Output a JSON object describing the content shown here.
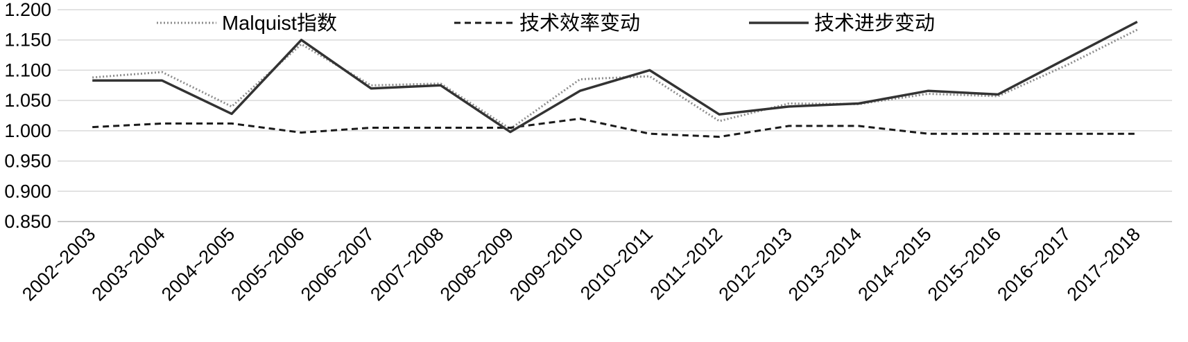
{
  "chart_data": {
    "type": "line",
    "categories": [
      "2002~2003",
      "2003~2004",
      "2004~2005",
      "2005~2006",
      "2006~2007",
      "2007~2008",
      "2008~2009",
      "2009~2010",
      "2010~2011",
      "2011~2012",
      "2012~2013",
      "2013~2014",
      "2014~2015",
      "2015~2016",
      "2016~2017",
      "2017~2018"
    ],
    "series": [
      {
        "name": "Malquist指数",
        "style": "dotted",
        "color": "#8c8c8c",
        "values": [
          1.088,
          1.097,
          1.04,
          1.143,
          1.075,
          1.078,
          1.003,
          1.085,
          1.09,
          1.016,
          1.045,
          1.044,
          1.061,
          1.057,
          1.109,
          1.167
        ]
      },
      {
        "name": "技术效率变动",
        "style": "dashed",
        "color": "#1a1a1a",
        "values": [
          1.006,
          1.012,
          1.012,
          0.997,
          1.005,
          1.005,
          1.005,
          1.02,
          0.995,
          0.99,
          1.008,
          1.008,
          0.995,
          0.995,
          0.995,
          0.995
        ]
      },
      {
        "name": "技术进步变动",
        "style": "solid",
        "color": "#333333",
        "values": [
          1.083,
          1.083,
          1.028,
          1.15,
          1.07,
          1.075,
          0.998,
          1.066,
          1.1,
          1.027,
          1.04,
          1.045,
          1.066,
          1.06,
          1.12,
          1.18
        ]
      }
    ],
    "y_ticks": [
      "1.200",
      "1.150",
      "1.100",
      "1.050",
      "1.000",
      "0.950",
      "0.900",
      "0.850"
    ],
    "ylim": [
      0.85,
      1.2
    ],
    "grid": true,
    "legend_position": "top"
  }
}
